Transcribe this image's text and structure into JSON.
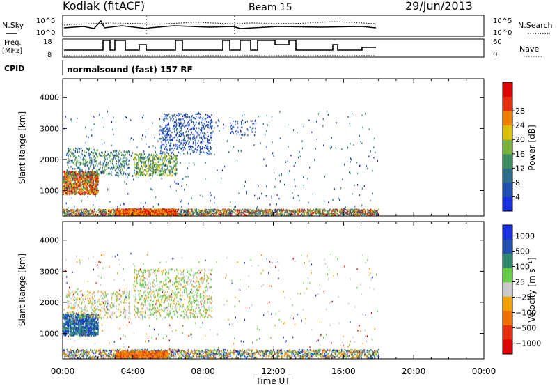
{
  "header": {
    "station": "Kodiak (fitACF)",
    "beam": "Beam 15",
    "date": "29/Jun/2013"
  },
  "summary": {
    "noise_left_label": "N.Sky",
    "noise_right_label": "N.Search",
    "noise_ticks": [
      "10^5",
      "10^0"
    ],
    "freq_label_line1": "Freq.",
    "freq_label_line2": "[MHz]",
    "freq_ticks": [
      "18",
      "8"
    ],
    "nave_label": "Nave",
    "nave_ticks": [
      "60",
      "0"
    ],
    "cpid_label": "CPID",
    "cpid_text": "normalsound (fast) 157 RF"
  },
  "chart_data": [
    {
      "type": "heatmap",
      "name": "power",
      "xlabel": "",
      "ylabel": "Slant Range [km]",
      "xlim": [
        0,
        24
      ],
      "ylim": [
        180,
        4600
      ],
      "yticks": [
        "1000",
        "2000",
        "3000",
        "4000"
      ],
      "xticks": [
        "00:00",
        "04:00",
        "08:00",
        "12:00",
        "16:00",
        "20:00",
        "00:00"
      ],
      "colorbar": {
        "label": "Power [dB]",
        "ticks": [
          "4",
          "8",
          "12",
          "16",
          "20",
          "24",
          "28"
        ],
        "colors": [
          "#1830e0",
          "#2050b0",
          "#2e6e8a",
          "#3f9060",
          "#7bb440",
          "#d8c000",
          "#f08000",
          "#e83010",
          "#e00000"
        ]
      },
      "features": [
        {
          "hours": [
            0.0,
            18.0
          ],
          "range_km": [
            180,
            400
          ],
          "value_db": 22
        },
        {
          "hours": [
            0.0,
            1.8
          ],
          "range_km": [
            1000,
            1600
          ],
          "value_db": 26
        },
        {
          "hours": [
            1.2,
            6.5
          ],
          "range_km": [
            1500,
            2200
          ],
          "value_db": 12
        },
        {
          "hours": [
            5.5,
            8.5
          ],
          "range_km": [
            2000,
            3500
          ],
          "value_db": 6
        }
      ]
    },
    {
      "type": "heatmap",
      "name": "velocity",
      "xlabel": "Time UT",
      "ylabel": "Slant Range [km]",
      "xlim": [
        0,
        24
      ],
      "ylim": [
        180,
        4600
      ],
      "yticks": [
        "1000",
        "2000",
        "3000",
        "4000"
      ],
      "xticks": [
        "00:00",
        "04:00",
        "08:00",
        "12:00",
        "16:00",
        "20:00",
        "00:00"
      ],
      "colorbar": {
        "label": "Velocity [m s⁻¹]",
        "ticks": [
          "1000",
          "500",
          "100",
          "25",
          "−25",
          "−100",
          "−500",
          "−1000"
        ],
        "colors": [
          "#1830e0",
          "#2050b0",
          "#2e8a6e",
          "#66cc44",
          "#c8c8c8",
          "#f0a000",
          "#f07000",
          "#e83010",
          "#e00000"
        ]
      },
      "features": [
        {
          "hours": [
            0.0,
            1.8
          ],
          "range_km": [
            1000,
            1600
          ],
          "value_ms": 800
        },
        {
          "hours": [
            0.0,
            18.0
          ],
          "range_km": [
            180,
            500
          ],
          "value_ms": -100
        },
        {
          "hours": [
            4.0,
            8.5
          ],
          "range_km": [
            1500,
            3000
          ],
          "value_ms": 0
        }
      ]
    }
  ]
}
